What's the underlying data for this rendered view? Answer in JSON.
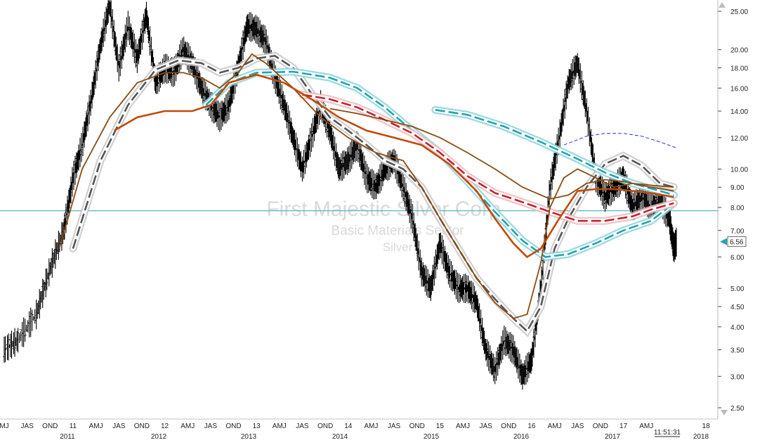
{
  "chart_data": {
    "type": "line",
    "watermark": {
      "title": "First Majestic Silver Corp",
      "line2": "Basic Materials Sector",
      "line3": "Silver"
    },
    "y_axis": {
      "scale": "log",
      "ylim": [
        2.3,
        26
      ],
      "ticks": [
        "25.00",
        "20.00",
        "18.00",
        "16.00",
        "14.00",
        "12.00",
        "10.00",
        "9.00",
        "8.00",
        "7.00",
        "6.00",
        "5.00",
        "4.50",
        "4.00",
        "3.50",
        "3.00",
        "2.50"
      ]
    },
    "last_price": "6.56",
    "time_label": "11:51:31",
    "horizontal_line": {
      "value": 7.85,
      "color": "#4fb8c2"
    },
    "x_axis": {
      "months": [
        "MJ",
        "JAS",
        "OND",
        "11",
        "AMJ",
        "JAS",
        "OND",
        "12",
        "AMJ",
        "JAS",
        "OND",
        "13",
        "AMJ",
        "JAS",
        "OND",
        "14",
        "AMJ",
        "JAS",
        "OND",
        "15",
        "AMJ",
        "JAS",
        "OND",
        "16",
        "AMJ",
        "JAS",
        "OND",
        "17",
        "AMJ",
        "18"
      ],
      "years": [
        "2011",
        "2012",
        "2013",
        "2014",
        "2015",
        "2016",
        "2017",
        "2018"
      ]
    },
    "series_colors": {
      "price": "#000000",
      "ma_gray": "#555555",
      "ma_teal": "#1fa5b0",
      "ma_red": "#c8202e",
      "ma_brown": "#8b4a10",
      "ma_orange": "#c04a0a",
      "ma_blue_dash": "#2233cc",
      "horizontal": "#4fb8c2"
    },
    "series": [
      {
        "key": "price",
        "style": "price",
        "points": [
          [
            2010.35,
            3.5
          ],
          [
            2010.5,
            3.7
          ],
          [
            2010.7,
            4.3
          ],
          [
            2010.85,
            5.6
          ],
          [
            2011.0,
            7.0
          ],
          [
            2011.1,
            9.5
          ],
          [
            2011.2,
            11.5
          ],
          [
            2011.3,
            15.0
          ],
          [
            2011.4,
            20.5
          ],
          [
            2011.5,
            26.0
          ],
          [
            2011.6,
            18.0
          ],
          [
            2011.7,
            23.0
          ],
          [
            2011.8,
            19.0
          ],
          [
            2011.9,
            24.5
          ],
          [
            2012.0,
            16.5
          ],
          [
            2012.1,
            18.0
          ],
          [
            2012.2,
            17.5
          ],
          [
            2012.3,
            20.0
          ],
          [
            2012.4,
            18.5
          ],
          [
            2012.5,
            16.0
          ],
          [
            2012.6,
            14.5
          ],
          [
            2012.7,
            13.5
          ],
          [
            2012.8,
            14.5
          ],
          [
            2012.9,
            18.0
          ],
          [
            2013.0,
            23.0
          ],
          [
            2013.1,
            22.5
          ],
          [
            2013.2,
            21.0
          ],
          [
            2013.3,
            17.0
          ],
          [
            2013.4,
            14.5
          ],
          [
            2013.5,
            12.0
          ],
          [
            2013.6,
            10.0
          ],
          [
            2013.7,
            12.0
          ],
          [
            2013.8,
            14.5
          ],
          [
            2013.9,
            12.5
          ],
          [
            2014.0,
            10.0
          ],
          [
            2014.1,
            10.5
          ],
          [
            2014.2,
            11.5
          ],
          [
            2014.3,
            9.5
          ],
          [
            2014.4,
            9.0
          ],
          [
            2014.5,
            10.0
          ],
          [
            2014.6,
            10.5
          ],
          [
            2014.7,
            9.0
          ],
          [
            2014.8,
            7.5
          ],
          [
            2014.9,
            5.5
          ],
          [
            2015.0,
            5.0
          ],
          [
            2015.1,
            6.5
          ],
          [
            2015.2,
            5.5
          ],
          [
            2015.3,
            5.0
          ],
          [
            2015.4,
            5.0
          ],
          [
            2015.5,
            4.6
          ],
          [
            2015.6,
            3.5
          ],
          [
            2015.7,
            3.1
          ],
          [
            2015.8,
            3.7
          ],
          [
            2015.9,
            3.5
          ],
          [
            2016.0,
            3.0
          ],
          [
            2016.1,
            3.3
          ],
          [
            2016.2,
            5.0
          ],
          [
            2016.3,
            9.0
          ],
          [
            2016.4,
            12.0
          ],
          [
            2016.5,
            16.5
          ],
          [
            2016.6,
            18.5
          ],
          [
            2016.7,
            14.0
          ],
          [
            2016.8,
            9.5
          ],
          [
            2016.9,
            8.5
          ],
          [
            2017.0,
            9.0
          ],
          [
            2017.1,
            9.5
          ],
          [
            2017.2,
            8.0
          ],
          [
            2017.3,
            8.5
          ],
          [
            2017.4,
            8.0
          ],
          [
            2017.5,
            8.3
          ],
          [
            2017.6,
            7.5
          ],
          [
            2017.65,
            6.3
          ],
          [
            2017.68,
            6.56
          ]
        ]
      },
      {
        "key": "ma_gray",
        "style": "band",
        "points": [
          [
            2011.1,
            6.3
          ],
          [
            2011.4,
            10.5
          ],
          [
            2011.7,
            14.5
          ],
          [
            2012.0,
            17.8
          ],
          [
            2012.25,
            18.8
          ],
          [
            2012.5,
            18.5
          ],
          [
            2012.7,
            17.5
          ],
          [
            2012.9,
            18.0
          ],
          [
            2013.1,
            19.0
          ],
          [
            2013.3,
            19.3
          ],
          [
            2013.5,
            18.0
          ],
          [
            2013.7,
            15.5
          ],
          [
            2013.9,
            13.5
          ],
          [
            2014.1,
            12.5
          ],
          [
            2014.3,
            11.5
          ],
          [
            2014.5,
            10.5
          ],
          [
            2014.7,
            10.0
          ],
          [
            2014.9,
            9.0
          ],
          [
            2015.1,
            7.5
          ],
          [
            2015.3,
            6.3
          ],
          [
            2015.5,
            5.3
          ],
          [
            2015.7,
            4.7
          ],
          [
            2015.9,
            4.2
          ],
          [
            2016.05,
            3.9
          ],
          [
            2016.2,
            4.5
          ],
          [
            2016.35,
            6.3
          ],
          [
            2016.5,
            7.5
          ],
          [
            2016.7,
            9.0
          ],
          [
            2016.9,
            10.3
          ],
          [
            2017.1,
            10.8
          ],
          [
            2017.3,
            10.2
          ],
          [
            2017.5,
            9.2
          ],
          [
            2017.65,
            9.0
          ]
        ]
      },
      {
        "key": "ma_teal_upper",
        "style": "band",
        "points": [
          [
            2015.05,
            14.1
          ],
          [
            2015.4,
            13.7
          ],
          [
            2015.8,
            12.8
          ],
          [
            2016.2,
            11.7
          ],
          [
            2016.6,
            10.6
          ],
          [
            2016.9,
            9.8
          ],
          [
            2017.2,
            9.2
          ],
          [
            2017.5,
            8.8
          ],
          [
            2017.65,
            8.6
          ]
        ]
      },
      {
        "key": "ma_teal_lower",
        "style": "band",
        "points": [
          [
            2012.55,
            14.5
          ],
          [
            2012.8,
            16.5
          ],
          [
            2013.1,
            17.5
          ],
          [
            2013.5,
            17.6
          ],
          [
            2013.9,
            17.0
          ],
          [
            2014.2,
            16.0
          ],
          [
            2014.5,
            14.3
          ],
          [
            2014.8,
            12.5
          ],
          [
            2015.1,
            11.0
          ],
          [
            2015.4,
            9.3
          ],
          [
            2015.7,
            7.8
          ],
          [
            2016.0,
            6.6
          ],
          [
            2016.25,
            6.0
          ],
          [
            2016.5,
            6.1
          ],
          [
            2016.8,
            6.5
          ],
          [
            2017.1,
            7.0
          ],
          [
            2017.4,
            7.4
          ],
          [
            2017.65,
            8.2
          ]
        ]
      },
      {
        "key": "ma_red",
        "style": "band",
        "points": [
          [
            2013.6,
            15.4
          ],
          [
            2013.9,
            15.0
          ],
          [
            2014.2,
            14.3
          ],
          [
            2014.5,
            13.3
          ],
          [
            2014.8,
            12.3
          ],
          [
            2015.1,
            11.0
          ],
          [
            2015.4,
            9.6
          ],
          [
            2015.7,
            8.7
          ],
          [
            2015.9,
            8.4
          ],
          [
            2016.1,
            8.1
          ],
          [
            2016.3,
            7.8
          ],
          [
            2016.6,
            7.4
          ],
          [
            2016.9,
            7.4
          ],
          [
            2017.2,
            7.6
          ],
          [
            2017.4,
            7.9
          ],
          [
            2017.65,
            8.2
          ]
        ]
      },
      {
        "key": "ma_brown_long",
        "style": "line",
        "points": [
          [
            2010.95,
            6.3
          ],
          [
            2011.2,
            10.0
          ],
          [
            2011.5,
            13.5
          ],
          [
            2011.8,
            16.5
          ],
          [
            2012.1,
            17.5
          ],
          [
            2012.3,
            17.5
          ],
          [
            2012.5,
            17.0
          ],
          [
            2012.7,
            16.0
          ],
          [
            2012.9,
            17.5
          ],
          [
            2013.05,
            19.5
          ],
          [
            2013.2,
            18.5
          ],
          [
            2013.5,
            16.0
          ],
          [
            2013.8,
            13.5
          ],
          [
            2014.1,
            12.0
          ],
          [
            2014.4,
            11.0
          ],
          [
            2014.7,
            10.5
          ],
          [
            2014.9,
            9.0
          ],
          [
            2015.1,
            7.5
          ],
          [
            2015.3,
            6.3
          ],
          [
            2015.5,
            5.3
          ],
          [
            2015.7,
            4.6
          ],
          [
            2015.9,
            4.2
          ],
          [
            2016.05,
            4.3
          ],
          [
            2016.2,
            5.8
          ],
          [
            2016.3,
            8.0
          ],
          [
            2016.45,
            9.5
          ],
          [
            2016.6,
            10.0
          ],
          [
            2016.8,
            9.5
          ],
          [
            2017.0,
            9.0
          ],
          [
            2017.2,
            9.2
          ],
          [
            2017.4,
            9.1
          ],
          [
            2017.65,
            9.0
          ]
        ]
      },
      {
        "key": "ma_brown_mid",
        "style": "line",
        "points": [
          [
            2013.9,
            14.2
          ],
          [
            2014.2,
            13.8
          ],
          [
            2014.5,
            13.3
          ],
          [
            2014.8,
            12.8
          ],
          [
            2015.1,
            12.0
          ],
          [
            2015.4,
            11.0
          ],
          [
            2015.7,
            10.0
          ],
          [
            2016.0,
            9.0
          ],
          [
            2016.3,
            8.4
          ],
          [
            2016.5,
            8.6
          ],
          [
            2016.7,
            9.2
          ],
          [
            2016.9,
            9.4
          ],
          [
            2017.1,
            9.3
          ],
          [
            2017.4,
            9.0
          ],
          [
            2017.65,
            8.8
          ]
        ]
      },
      {
        "key": "ma_orange",
        "style": "line",
        "points": [
          [
            2011.55,
            12.5
          ],
          [
            2011.8,
            13.5
          ],
          [
            2012.1,
            14.0
          ],
          [
            2012.4,
            14.0
          ],
          [
            2012.6,
            14.5
          ],
          [
            2012.8,
            16.5
          ],
          [
            2013.1,
            17.3
          ],
          [
            2013.4,
            16.5
          ],
          [
            2013.7,
            15.0
          ],
          [
            2014.0,
            13.5
          ],
          [
            2014.3,
            12.5
          ],
          [
            2014.6,
            12.0
          ],
          [
            2014.9,
            11.5
          ],
          [
            2015.2,
            10.3
          ],
          [
            2015.5,
            8.8
          ],
          [
            2015.7,
            7.5
          ],
          [
            2015.9,
            6.5
          ],
          [
            2016.05,
            6.0
          ],
          [
            2016.2,
            6.3
          ],
          [
            2016.4,
            7.5
          ],
          [
            2016.6,
            8.8
          ],
          [
            2016.8,
            8.9
          ],
          [
            2017.0,
            8.9
          ],
          [
            2017.2,
            8.8
          ],
          [
            2017.4,
            8.7
          ],
          [
            2017.65,
            8.5
          ]
        ]
      },
      {
        "key": "ma_blue_dash",
        "style": "dash",
        "points": [
          [
            2016.45,
            11.5
          ],
          [
            2016.7,
            12.1
          ],
          [
            2016.9,
            12.3
          ],
          [
            2017.1,
            12.3
          ],
          [
            2017.3,
            12.1
          ],
          [
            2017.5,
            11.7
          ],
          [
            2017.68,
            11.3
          ]
        ]
      }
    ]
  }
}
